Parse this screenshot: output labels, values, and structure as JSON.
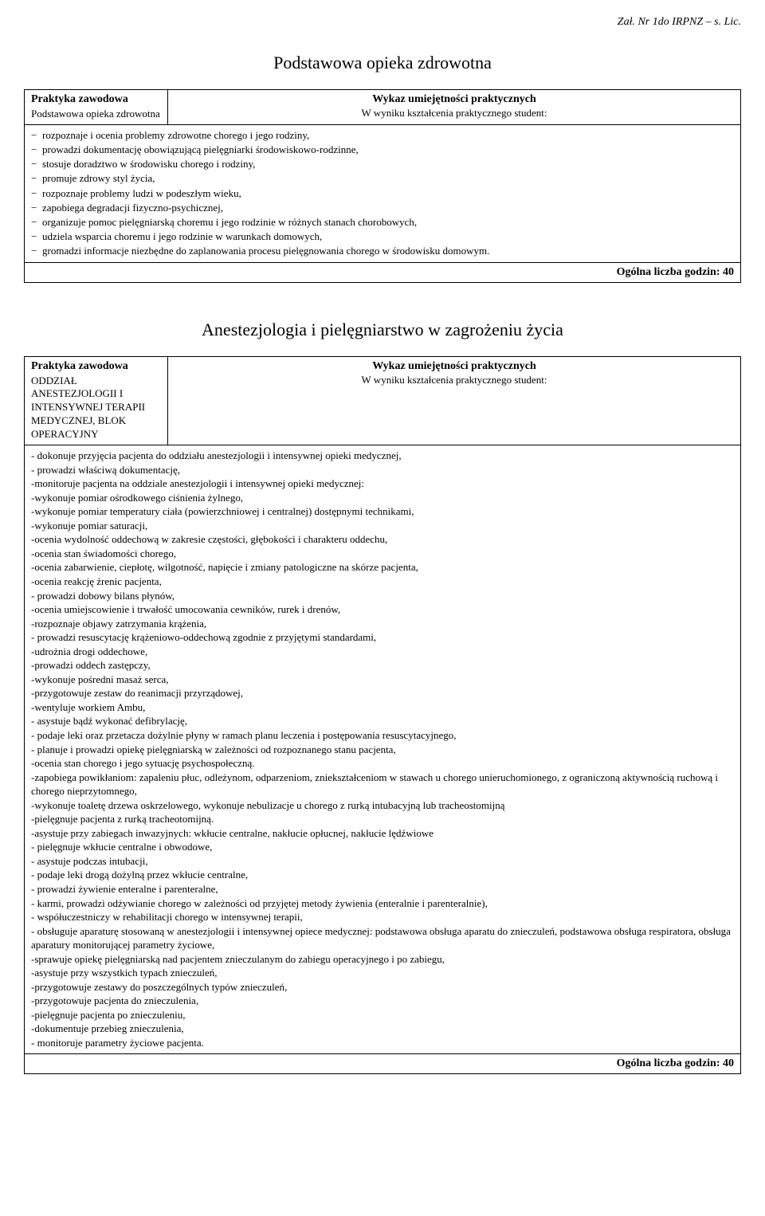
{
  "header": {
    "note": "Zał. Nr 1do IRPNZ – s. Lic."
  },
  "section1": {
    "title": "Podstawowa opieka zdrowotna",
    "left_title": "Praktyka zawodowa",
    "left_sub": "Podstawowa opieka zdrowotna",
    "right_title": "Wykaz umiejętności praktycznych",
    "right_sub": "W wyniku kształcenia praktycznego student:",
    "items": [
      "rozpoznaje  i ocenia problemy zdrowotne chorego i jego rodziny,",
      "prowadzi dokumentację obowiązującą pielęgniarki środowiskowo-rodzinne,",
      "stosuje doradztwo w środowisku chorego i rodziny,",
      "promuje zdrowy styl życia,",
      "rozpoznaje problemy ludzi w podeszłym wieku,",
      "zapobiega degradacji fizyczno-psychicznej,",
      "organizuje pomoc pielęgniarską choremu i jego rodzinie w różnych stanach chorobowych,",
      "udziela wsparcia choremu i jego rodzinie w warunkach domowych,",
      "gromadzi informacje niezbędne do zaplanowania procesu pielęgnowania chorego w środowisku domowym."
    ],
    "footer": "Ogólna liczba godzin: 40"
  },
  "section2": {
    "title": "Anestezjologia i pielęgniarstwo w zagrożeniu  życia",
    "left_title": "Praktyka zawodowa",
    "left_sub": "ODDZIAŁ ANESTEZJOLOGII I INTENSYWNEJ TERAPII MEDYCZNEJ, BLOK OPERACYJNY",
    "right_title": "Wykaz umiejętności praktycznych",
    "right_sub": "W wyniku kształcenia praktycznego student:",
    "items": [
      "- dokonuje  przyjęcia pacjenta do oddziału anestezjologii i intensywnej opieki medycznej,",
      "- prowadzi właściwą dokumentację,",
      "-monitoruje pacjenta na oddziale anestezjologii i intensywnej opieki medycznej:",
      "-wykonuje pomiar ośrodkowego ciśnienia żylnego,",
      "-wykonuje pomiar temperatury ciała (powierzchniowej i centralnej) dostępnymi technikami,",
      "-wykonuje pomiar saturacji,",
      "-ocenia wydolność oddechową w zakresie częstości, głębokości i charakteru oddechu,",
      "-ocenia stan świadomości chorego,",
      "-ocenia zabarwienie, ciepłotę, wilgotność, napięcie i zmiany patologiczne na skórze pacjenta,",
      "-ocenia reakcję źrenic pacjenta,",
      "- prowadzi dobowy bilans płynów,",
      "-ocenia umiejscowienie i trwałość umocowania cewników, rurek i drenów,",
      "-rozpoznaje objawy zatrzymania krążenia,",
      "- prowadzi  resuscytację krążeniowo-oddechową zgodnie z przyjętymi standardami,",
      "-udrożnia drogi oddechowe,",
      "-prowadzi oddech zastępczy,",
      "-wykonuje pośredni masaż serca,",
      "-przygotowuje zestaw do reanimacji przyrządowej,",
      "-wentyluje workiem Ambu,",
      "- asystuje bądź wykonać defibrylację,",
      "- podaje leki oraz  przetacza dożylnie płyny w ramach planu leczenia i postępowania resuscytacyjnego,",
      "- planuje i prowadzi  opiekę pielęgniarską w zależności od rozpoznanego stanu pacjenta,",
      "-ocenia stan chorego i jego sytuację psychospołeczną.",
      "-zapobiega powikłaniom: zapaleniu płuc, odleżynom, odparzeniom, zniekształceniom w stawach u chorego unieruchomionego, z ograniczoną aktywnością ruchową i  chorego nieprzytomnego,",
      "-wykonuje toaletę drzewa oskrzelowego, wykonuje nebulizacje u chorego z rurką intubacyjną lub tracheostomijną",
      "-pielęgnuje  pacjenta z rurką tracheotomijną.",
      "-asystuje przy zabiegach inwazyjnych: wkłucie centralne, nakłucie opłucnej, nakłucie lędźwiowe",
      "- pielęgnuje wkłucie centralne i obwodowe,",
      "- asystuje podczas intubacji,",
      "- podaje leki drogą dożylną przez wkłucie centralne,",
      "- prowadzi żywienie enteralne i parenteralne,",
      "- karmi, prowadzi odżywianie  chorego w zależności od przyjętej metody żywienia (enteralnie i parenteralnie),",
      "- współuczestniczy  w rehabilitacji chorego w intensywnej terapii,",
      "- obsługuje aparaturę stosowaną w anestezjologii i intensywnej opiece medycznej: podstawowa obsługa aparatu do znieczuleń, podstawowa obsługa respiratora, obsługa aparatury monitorującej parametry życiowe,",
      "-sprawuje opiekę pielęgniarską  nad pacjentem znieczulanym do zabiegu operacyjnego i po zabiegu,",
      "-asystuje  przy wszystkich typach znieczuleń,",
      "-przygotowuje  zestawy do poszczególnych typów znieczuleń,",
      "-przygotowuje pacjenta do znieczulenia,",
      "-pielęgnuje pacjenta po znieczuleniu,",
      "-dokumentuje przebieg znieczulenia,",
      "- monitoruje parametry życiowe pacjenta."
    ],
    "footer": "Ogólna liczba godzin: 40"
  }
}
